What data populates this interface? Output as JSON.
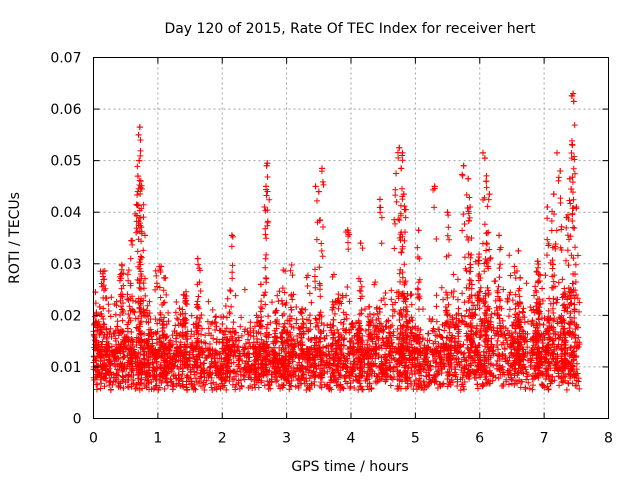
{
  "chart_data": {
    "type": "scatter",
    "title": "Day 120 of 2015, Rate Of TEC Index for receiver hert",
    "xlabel": "GPS time / hours",
    "ylabel": "ROTI / TECUs",
    "xlim": [
      0,
      8
    ],
    "ylim": [
      0,
      0.07
    ],
    "xticks": [
      0,
      1,
      2,
      3,
      4,
      5,
      6,
      7,
      8
    ],
    "xtick_labels": [
      "0",
      "1",
      "2",
      "3",
      "4",
      "5",
      "6",
      "7",
      "8"
    ],
    "yticks": [
      0,
      0.01,
      0.02,
      0.03,
      0.04,
      0.05,
      0.06,
      0.07
    ],
    "ytick_labels": [
      "0",
      "0.01",
      "0.02",
      "0.03",
      "0.04",
      "0.05",
      "0.06",
      "0.07"
    ],
    "grid": true,
    "marker": "+",
    "series_color": "#ff0000",
    "series": [
      {
        "name": "ROTI",
        "x_range": [
          0,
          7.55
        ],
        "note": "dense cloud of points; baseline roughly 0.005-0.015 with excursions",
        "peaks": [
          [
            0.72,
            0.0565
          ],
          [
            0.7,
            0.055
          ],
          [
            0.73,
            0.054
          ],
          [
            0.71,
            0.05
          ],
          [
            0.69,
            0.047
          ],
          [
            0.75,
            0.0445
          ],
          [
            0.67,
            0.0415
          ],
          [
            0.8,
            0.0355
          ],
          [
            0.6,
            0.0345
          ],
          [
            0.15,
            0.0285
          ],
          [
            0.03,
            0.0245
          ],
          [
            1.05,
            0.0295
          ],
          [
            1.4,
            0.024
          ],
          [
            1.62,
            0.031
          ],
          [
            2.15,
            0.0355
          ],
          [
            2.7,
            0.0495
          ],
          [
            2.69,
            0.049
          ],
          [
            2.68,
            0.045
          ],
          [
            2.6,
            0.026
          ],
          [
            3.55,
            0.0485
          ],
          [
            3.45,
            0.045
          ],
          [
            3.5,
            0.044
          ],
          [
            3.52,
            0.0385
          ],
          [
            3.95,
            0.0365
          ],
          [
            4.15,
            0.034
          ],
          [
            4.45,
            0.0425
          ],
          [
            4.75,
            0.0525
          ],
          [
            4.8,
            0.0515
          ],
          [
            4.78,
            0.0485
          ],
          [
            4.7,
            0.0475
          ],
          [
            4.82,
            0.0435
          ],
          [
            4.85,
            0.0405
          ],
          [
            5.05,
            0.0365
          ],
          [
            5.3,
            0.045
          ],
          [
            5.5,
            0.04
          ],
          [
            5.75,
            0.049
          ],
          [
            5.82,
            0.0465
          ],
          [
            5.85,
            0.041
          ],
          [
            6.05,
            0.0515
          ],
          [
            6.08,
            0.0505
          ],
          [
            6.1,
            0.046
          ],
          [
            6.15,
            0.0435
          ],
          [
            6.3,
            0.0355
          ],
          [
            6.6,
            0.0325
          ],
          [
            6.9,
            0.0305
          ],
          [
            7.15,
            0.0435
          ],
          [
            7.2,
            0.0515
          ],
          [
            7.25,
            0.048
          ],
          [
            7.05,
            0.041
          ],
          [
            7.45,
            0.063
          ],
          [
            7.46,
            0.0615
          ],
          [
            7.44,
            0.053
          ],
          [
            7.4,
            0.0465
          ],
          [
            7.42,
            0.0445
          ],
          [
            7.35,
            0.039
          ],
          [
            7.5,
            0.041
          ],
          [
            7.48,
            0.028
          ]
        ]
      }
    ]
  }
}
